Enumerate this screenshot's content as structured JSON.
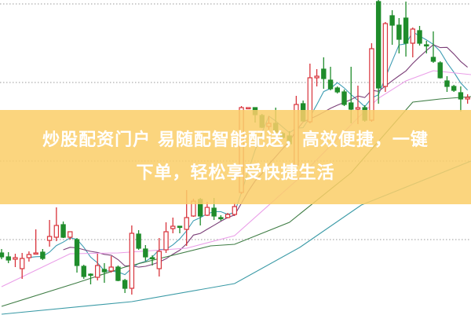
{
  "banner": {
    "line1": "炒股配资门户 易随配智能配送，高效便捷，一键",
    "line2": "下单，轻松享受快捷生活",
    "background": "#facc6a"
  },
  "chart_data": {
    "type": "candlestick",
    "title": "",
    "xlabel": "",
    "ylabel": "",
    "ylim": [
      0,
      40
    ],
    "grid": {
      "on": true,
      "style": "dotted",
      "levels": [
        39.5,
        29.5,
        19.5,
        9.5
      ]
    },
    "colors": {
      "up": "#d8333b",
      "down": "#1f8c2b",
      "grid": "#9a9a9a"
    },
    "candle_fields": [
      "open",
      "close",
      "high",
      "low"
    ],
    "candles": [
      [
        7.8,
        7.3,
        8.3,
        7.0
      ],
      [
        7.3,
        6.9,
        7.9,
        6.5
      ],
      [
        7.0,
        7.2,
        7.7,
        6.0
      ],
      [
        5.8,
        7.1,
        7.8,
        4.5
      ],
      [
        7.2,
        7.6,
        8.0,
        6.7
      ],
      [
        7.75,
        7.8,
        10.8,
        7.7
      ],
      [
        7.9,
        7.1,
        8.3,
        6.9
      ],
      [
        9.4,
        9.9,
        12.0,
        8.6
      ],
      [
        9.8,
        11.3,
        13.6,
        9.3
      ],
      [
        11.4,
        9.8,
        11.8,
        9.7
      ],
      [
        9.8,
        10.5,
        10.5,
        9.5
      ],
      [
        9.5,
        6.2,
        9.7,
        5.3
      ],
      [
        6.1,
        4.8,
        6.3,
        4.5
      ],
      [
        5.1,
        5.0,
        5.2,
        3.8
      ],
      [
        4.7,
        6.2,
        7.7,
        4.3
      ],
      [
        5.7,
        5.4,
        6.5,
        4.0
      ],
      [
        5.5,
        6.0,
        7.4,
        5.3
      ],
      [
        6.0,
        4.3,
        6.2,
        4.2
      ],
      [
        4.3,
        3.3,
        4.5,
        2.7
      ],
      [
        3.3,
        10.3,
        11.3,
        2.5
      ],
      [
        10.2,
        8.4,
        10.7,
        8.2
      ],
      [
        8.3,
        7.3,
        8.8,
        6.8
      ],
      [
        7.2,
        7.15,
        7.5,
        6.2
      ],
      [
        5.8,
        8.0,
        9.7,
        4.8
      ],
      [
        8.2,
        10.5,
        11.7,
        7.8
      ],
      [
        10.9,
        11.2,
        12.3,
        10.3
      ],
      [
        11.2,
        11.1,
        11.2,
        10.3
      ],
      [
        10.8,
        12.3,
        15.8,
        8.7
      ],
      [
        12.5,
        14.4,
        14.7,
        12.4
      ],
      [
        14.6,
        12.5,
        14.8,
        11.3
      ],
      [
        12.6,
        13.6,
        14.3,
        12.5
      ],
      [
        13.5,
        12.5,
        14.8,
        12.0
      ],
      [
        12.3,
        12.25,
        12.6,
        11.9
      ],
      [
        12.3,
        12.7,
        12.9,
        12.2
      ],
      [
        12.7,
        13.7,
        14.2,
        12.5
      ],
      [
        15.5,
        26.3,
        26.5,
        15.3
      ],
      [
        26.25,
        26.3,
        26.3,
        26.2
      ],
      [
        26.3,
        25.4,
        26.3,
        24.4
      ],
      [
        25.3,
        23.8,
        25.5,
        23.7
      ],
      [
        23.9,
        24.3,
        25.2,
        23.5
      ],
      [
        24.3,
        23.2,
        26.3,
        22.8
      ],
      [
        23.0,
        22.5,
        23.2,
        22.3
      ],
      [
        22.7,
        21.7,
        23.3,
        21.6
      ],
      [
        19.0,
        26.7,
        27.8,
        18.8
      ],
      [
        26.8,
        24.6,
        27.2,
        24.5
      ],
      [
        24.5,
        30.1,
        31.9,
        24.3
      ],
      [
        30.1,
        30.3,
        31.2,
        29.0
      ],
      [
        31.2,
        30.0,
        32.7,
        28.7
      ],
      [
        29.8,
        28.7,
        31.5,
        28.5
      ],
      [
        28.8,
        28.3,
        29.0,
        28.1
      ],
      [
        28.3,
        26.7,
        28.6,
        26.5
      ],
      [
        26.9,
        26.1,
        31.5,
        24.3
      ],
      [
        26.1,
        26.3,
        29.1,
        24.2
      ],
      [
        26.3,
        24.7,
        26.6,
        24.5
      ],
      [
        24.7,
        33.8,
        34.5,
        24.5
      ],
      [
        39.8,
        28.8,
        40.0,
        26.8
      ],
      [
        29.0,
        37.0,
        37.2,
        28.3
      ],
      [
        38.0,
        36.8,
        38.7,
        34.3
      ],
      [
        36.8,
        35.0,
        37.7,
        33.2
      ],
      [
        37.7,
        34.5,
        39.8,
        32.8
      ],
      [
        34.5,
        36.3,
        36.5,
        32.7
      ],
      [
        36.1,
        34.5,
        36.7,
        34.2
      ],
      [
        34.3,
        34.25,
        34.8,
        33.2
      ],
      [
        32.7,
        32.2,
        36.0,
        32.0
      ],
      [
        32.0,
        30.1,
        32.2,
        30.0
      ],
      [
        29.7,
        29.0,
        30.3,
        28.3
      ],
      [
        29.0,
        28.5,
        29.2,
        28.3
      ],
      [
        28.2,
        27.4,
        29.0,
        25.8
      ],
      [
        27.4,
        27.6,
        28.0,
        26.8
      ]
    ],
    "moving_averages": [
      {
        "period": 5,
        "color": "#3d9cb3",
        "computed_from_closes": true
      },
      {
        "period": 10,
        "color": "#7b3f78",
        "computed_from_closes": true
      },
      {
        "color": "#ea9ee8",
        "points": [
          [
            0,
            3.5
          ],
          [
            10,
            7.7
          ],
          [
            17,
            7.8
          ],
          [
            27,
            8.4
          ],
          [
            34,
            10.0
          ],
          [
            43,
            17.0
          ],
          [
            52,
            25.0
          ],
          [
            55,
            27.5
          ],
          [
            59,
            29.7
          ],
          [
            63,
            31.0
          ],
          [
            68.5,
            30.5
          ]
        ]
      },
      {
        "color": "#3f7d45",
        "points": [
          [
            0,
            1.0
          ],
          [
            11,
            4.0
          ],
          [
            18,
            6.0
          ],
          [
            30.5,
            8.7
          ],
          [
            34,
            8.9
          ],
          [
            42,
            11.7
          ],
          [
            51,
            18.0
          ],
          [
            60,
            27.0
          ],
          [
            64,
            27.4
          ],
          [
            68.5,
            27.7
          ]
        ]
      },
      {
        "color": "#3a9aa6",
        "points": [
          [
            0,
            0.0
          ],
          [
            19,
            1.6
          ],
          [
            34,
            3.9
          ],
          [
            43.5,
            8.5
          ],
          [
            52.5,
            13.9
          ],
          [
            68.5,
            19.5
          ]
        ]
      }
    ]
  }
}
